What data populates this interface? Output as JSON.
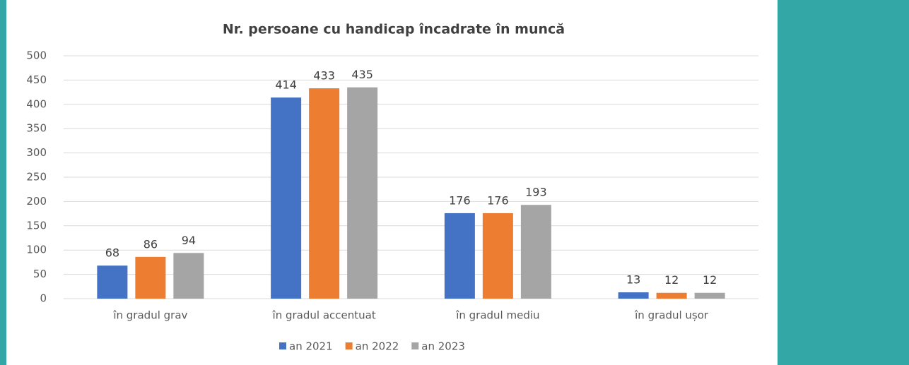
{
  "chart_data": {
    "type": "bar",
    "title": "Nr. persoane cu handicap încadrate în muncă",
    "categories": [
      "în gradul grav",
      "în gradul accentuat",
      "în gradul mediu",
      "în gradul ușor"
    ],
    "series": [
      {
        "name": "an 2021",
        "color": "#4472c4",
        "values": [
          68,
          414,
          176,
          13
        ]
      },
      {
        "name": "an 2022",
        "color": "#ed7d31",
        "values": [
          86,
          433,
          176,
          12
        ]
      },
      {
        "name": "an 2023",
        "color": "#a5a5a5",
        "values": [
          94,
          435,
          193,
          12
        ]
      }
    ],
    "ylim": [
      0,
      500
    ],
    "yticks": [
      0,
      50,
      100,
      150,
      200,
      250,
      300,
      350,
      400,
      450,
      500
    ],
    "grid": true,
    "legend": "bottom"
  }
}
